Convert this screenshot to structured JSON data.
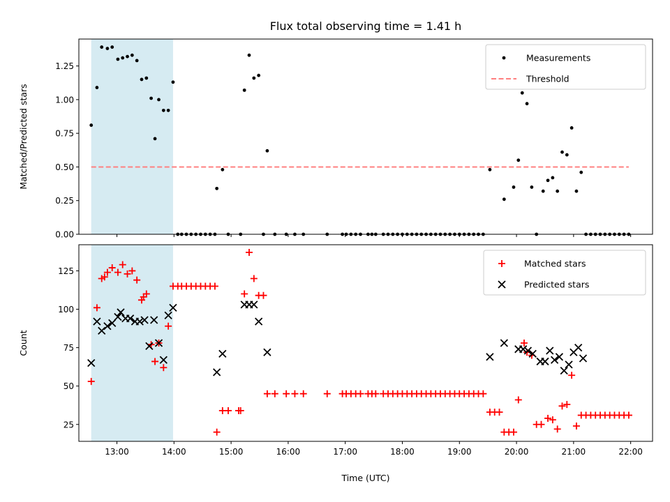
{
  "chart_data": [
    {
      "type": "scatter",
      "title": "Flux total observing time = 1.41 h",
      "xlabel": "",
      "ylabel": "Matched/Predicted stars",
      "xlim": [
        "12:20",
        "22:23"
      ],
      "ylim": [
        0,
        1.45
      ],
      "yticks": [
        0.0,
        0.25,
        0.5,
        0.75,
        1.0,
        1.25
      ],
      "ytick_labels": [
        "0.00",
        "0.25",
        "0.50",
        "0.75",
        "1.00",
        "1.25"
      ],
      "shaded_span": [
        "12:33",
        "13:59"
      ],
      "shade_color": "#add8e6",
      "legend_position": "upper right",
      "series": [
        {
          "name": "Measurements",
          "marker": "dot",
          "color": "#000000",
          "points": [
            [
              "12:33",
              0.81
            ],
            [
              "12:39",
              1.09
            ],
            [
              "12:44",
              1.39
            ],
            [
              "12:50",
              1.38
            ],
            [
              "12:55",
              1.39
            ],
            [
              "13:01",
              1.3
            ],
            [
              "13:06",
              1.31
            ],
            [
              "13:11",
              1.32
            ],
            [
              "13:16",
              1.33
            ],
            [
              "13:21",
              1.29
            ],
            [
              "13:26",
              1.15
            ],
            [
              "13:31",
              1.16
            ],
            [
              "13:36",
              1.01
            ],
            [
              "13:40",
              0.71
            ],
            [
              "13:44",
              1.0
            ],
            [
              "13:49",
              0.92
            ],
            [
              "13:54",
              0.92
            ],
            [
              "13:59",
              1.13
            ],
            [
              "14:04",
              0.0
            ],
            [
              "14:08",
              0.0
            ],
            [
              "14:13",
              0.0
            ],
            [
              "14:18",
              0.0
            ],
            [
              "14:23",
              0.0
            ],
            [
              "14:28",
              0.0
            ],
            [
              "14:33",
              0.0
            ],
            [
              "14:38",
              0.0
            ],
            [
              "14:43",
              0.0
            ],
            [
              "14:45",
              0.34
            ],
            [
              "14:51",
              0.48
            ],
            [
              "14:57",
              0.0
            ],
            [
              "15:10",
              0.0
            ],
            [
              "15:14",
              1.07
            ],
            [
              "15:19",
              1.33
            ],
            [
              "15:24",
              1.16
            ],
            [
              "15:29",
              1.18
            ],
            [
              "15:34",
              0.0
            ],
            [
              "15:38",
              0.62
            ],
            [
              "15:46",
              0.0
            ],
            [
              "15:58",
              0.0
            ],
            [
              "16:07",
              0.0
            ],
            [
              "16:16",
              0.0
            ],
            [
              "16:41",
              0.0
            ],
            [
              "16:57",
              0.0
            ],
            [
              "17:01",
              0.0
            ],
            [
              "17:06",
              0.0
            ],
            [
              "17:11",
              0.0
            ],
            [
              "17:16",
              0.0
            ],
            [
              "17:24",
              0.0
            ],
            [
              "17:28",
              0.0
            ],
            [
              "17:32",
              0.0
            ],
            [
              "17:40",
              0.0
            ],
            [
              "17:45",
              0.0
            ],
            [
              "17:50",
              0.0
            ],
            [
              "17:55",
              0.0
            ],
            [
              "18:00",
              0.0
            ],
            [
              "18:05",
              0.0
            ],
            [
              "18:10",
              0.0
            ],
            [
              "18:15",
              0.0
            ],
            [
              "18:20",
              0.0
            ],
            [
              "18:25",
              0.0
            ],
            [
              "18:30",
              0.0
            ],
            [
              "18:35",
              0.0
            ],
            [
              "18:40",
              0.0
            ],
            [
              "18:45",
              0.0
            ],
            [
              "18:50",
              0.0
            ],
            [
              "18:55",
              0.0
            ],
            [
              "19:00",
              0.0
            ],
            [
              "19:05",
              0.0
            ],
            [
              "19:10",
              0.0
            ],
            [
              "19:15",
              0.0
            ],
            [
              "19:20",
              0.0
            ],
            [
              "19:25",
              0.0
            ],
            [
              "19:32",
              0.48
            ],
            [
              "19:47",
              0.26
            ],
            [
              "19:57",
              0.35
            ],
            [
              "20:02",
              0.55
            ],
            [
              "20:06",
              1.05
            ],
            [
              "20:11",
              0.97
            ],
            [
              "20:16",
              0.35
            ],
            [
              "20:21",
              0.0
            ],
            [
              "20:28",
              0.32
            ],
            [
              "20:33",
              0.4
            ],
            [
              "20:38",
              0.42
            ],
            [
              "20:43",
              0.32
            ],
            [
              "20:48",
              0.61
            ],
            [
              "20:53",
              0.59
            ],
            [
              "20:58",
              0.79
            ],
            [
              "21:03",
              0.32
            ],
            [
              "21:08",
              0.46
            ],
            [
              "21:13",
              0.0
            ],
            [
              "21:18",
              0.0
            ],
            [
              "21:23",
              0.0
            ],
            [
              "21:28",
              0.0
            ],
            [
              "21:33",
              0.0
            ],
            [
              "21:38",
              0.0
            ],
            [
              "21:43",
              0.0
            ],
            [
              "21:48",
              0.0
            ],
            [
              "21:53",
              0.0
            ],
            [
              "21:58",
              0.0
            ]
          ]
        },
        {
          "name": "Threshold",
          "marker": "dashed-line",
          "color": "#ff7f7f",
          "points": [
            [
              "12:33",
              0.5
            ],
            [
              "21:58",
              0.5
            ]
          ]
        }
      ]
    },
    {
      "type": "scatter",
      "title": "",
      "xlabel": "Time (UTC)",
      "ylabel": "Count",
      "xlim": [
        "12:20",
        "22:23"
      ],
      "ylim": [
        14,
        142
      ],
      "yticks": [
        25,
        50,
        75,
        100,
        125
      ],
      "ytick_labels": [
        "25",
        "50",
        "75",
        "100",
        "125"
      ],
      "xticks": [
        "13:00",
        "14:00",
        "15:00",
        "16:00",
        "17:00",
        "18:00",
        "19:00",
        "20:00",
        "21:00",
        "22:00"
      ],
      "shaded_span": [
        "12:33",
        "13:59"
      ],
      "shade_color": "#add8e6",
      "legend_position": "upper right",
      "series": [
        {
          "name": "Matched stars",
          "marker": "plus",
          "color": "#ff0000",
          "points": [
            [
              "12:33",
              53
            ],
            [
              "12:39",
              101
            ],
            [
              "12:44",
              120
            ],
            [
              "12:47",
              121
            ],
            [
              "12:50",
              124
            ],
            [
              "12:55",
              127
            ],
            [
              "13:01",
              124
            ],
            [
              "13:06",
              129
            ],
            [
              "13:11",
              123
            ],
            [
              "13:16",
              125
            ],
            [
              "13:21",
              119
            ],
            [
              "13:26",
              106
            ],
            [
              "13:28",
              108
            ],
            [
              "13:31",
              110
            ],
            [
              "13:36",
              77
            ],
            [
              "13:40",
              66
            ],
            [
              "13:44",
              78
            ],
            [
              "13:49",
              62
            ],
            [
              "13:54",
              89
            ],
            [
              "13:59",
              115
            ],
            [
              "14:04",
              115
            ],
            [
              "14:08",
              115
            ],
            [
              "14:13",
              115
            ],
            [
              "14:18",
              115
            ],
            [
              "14:23",
              115
            ],
            [
              "14:28",
              115
            ],
            [
              "14:33",
              115
            ],
            [
              "14:38",
              115
            ],
            [
              "14:43",
              115
            ],
            [
              "14:45",
              20
            ],
            [
              "14:51",
              34
            ],
            [
              "14:57",
              34
            ],
            [
              "15:08",
              34
            ],
            [
              "15:10",
              34
            ],
            [
              "15:14",
              110
            ],
            [
              "15:19",
              137
            ],
            [
              "15:24",
              120
            ],
            [
              "15:29",
              109
            ],
            [
              "15:34",
              109
            ],
            [
              "15:38",
              45
            ],
            [
              "15:46",
              45
            ],
            [
              "15:58",
              45
            ],
            [
              "16:07",
              45
            ],
            [
              "16:16",
              45
            ],
            [
              "16:41",
              45
            ],
            [
              "16:57",
              45
            ],
            [
              "17:01",
              45
            ],
            [
              "17:06",
              45
            ],
            [
              "17:11",
              45
            ],
            [
              "17:16",
              45
            ],
            [
              "17:24",
              45
            ],
            [
              "17:28",
              45
            ],
            [
              "17:32",
              45
            ],
            [
              "17:40",
              45
            ],
            [
              "17:45",
              45
            ],
            [
              "17:50",
              45
            ],
            [
              "17:55",
              45
            ],
            [
              "18:00",
              45
            ],
            [
              "18:05",
              45
            ],
            [
              "18:10",
              45
            ],
            [
              "18:15",
              45
            ],
            [
              "18:20",
              45
            ],
            [
              "18:25",
              45
            ],
            [
              "18:30",
              45
            ],
            [
              "18:35",
              45
            ],
            [
              "18:40",
              45
            ],
            [
              "18:45",
              45
            ],
            [
              "18:50",
              45
            ],
            [
              "18:55",
              45
            ],
            [
              "19:00",
              45
            ],
            [
              "19:05",
              45
            ],
            [
              "19:10",
              45
            ],
            [
              "19:15",
              45
            ],
            [
              "19:20",
              45
            ],
            [
              "19:25",
              45
            ],
            [
              "19:32",
              33
            ],
            [
              "19:37",
              33
            ],
            [
              "19:42",
              33
            ],
            [
              "19:47",
              20
            ],
            [
              "19:52",
              20
            ],
            [
              "19:57",
              20
            ],
            [
              "20:02",
              41
            ],
            [
              "20:08",
              78
            ],
            [
              "20:11",
              72
            ],
            [
              "20:16",
              70
            ],
            [
              "20:21",
              25
            ],
            [
              "20:26",
              25
            ],
            [
              "20:33",
              29
            ],
            [
              "20:38",
              28
            ],
            [
              "20:43",
              22
            ],
            [
              "20:48",
              37
            ],
            [
              "20:53",
              38
            ],
            [
              "20:58",
              57
            ],
            [
              "21:03",
              24
            ],
            [
              "21:08",
              31
            ],
            [
              "21:13",
              31
            ],
            [
              "21:18",
              31
            ],
            [
              "21:23",
              31
            ],
            [
              "21:28",
              31
            ],
            [
              "21:33",
              31
            ],
            [
              "21:38",
              31
            ],
            [
              "21:43",
              31
            ],
            [
              "21:48",
              31
            ],
            [
              "21:53",
              31
            ],
            [
              "21:58",
              31
            ]
          ]
        },
        {
          "name": "Predicted stars",
          "marker": "x",
          "color": "#000000",
          "points": [
            [
              "12:33",
              65
            ],
            [
              "12:39",
              92
            ],
            [
              "12:44",
              86
            ],
            [
              "12:50",
              89
            ],
            [
              "12:55",
              91
            ],
            [
              "13:01",
              95
            ],
            [
              "13:04",
              98
            ],
            [
              "13:09",
              94
            ],
            [
              "13:14",
              94
            ],
            [
              "13:19",
              92
            ],
            [
              "13:24",
              92
            ],
            [
              "13:29",
              93
            ],
            [
              "13:34",
              76
            ],
            [
              "13:39",
              93
            ],
            [
              "13:44",
              78
            ],
            [
              "13:49",
              67
            ],
            [
              "13:54",
              96
            ],
            [
              "13:59",
              101
            ],
            [
              "14:45",
              59
            ],
            [
              "14:51",
              71
            ],
            [
              "15:14",
              103
            ],
            [
              "15:19",
              103
            ],
            [
              "15:24",
              103
            ],
            [
              "15:29",
              92
            ],
            [
              "15:38",
              72
            ],
            [
              "19:32",
              69
            ],
            [
              "19:47",
              78
            ],
            [
              "20:02",
              74
            ],
            [
              "20:07",
              74
            ],
            [
              "20:12",
              73
            ],
            [
              "20:17",
              71
            ],
            [
              "20:25",
              66
            ],
            [
              "20:30",
              66
            ],
            [
              "20:35",
              73
            ],
            [
              "20:40",
              67
            ],
            [
              "20:45",
              69
            ],
            [
              "20:50",
              60
            ],
            [
              "20:55",
              64
            ],
            [
              "21:00",
              72
            ],
            [
              "21:05",
              75
            ],
            [
              "21:10",
              68
            ]
          ]
        }
      ]
    }
  ]
}
